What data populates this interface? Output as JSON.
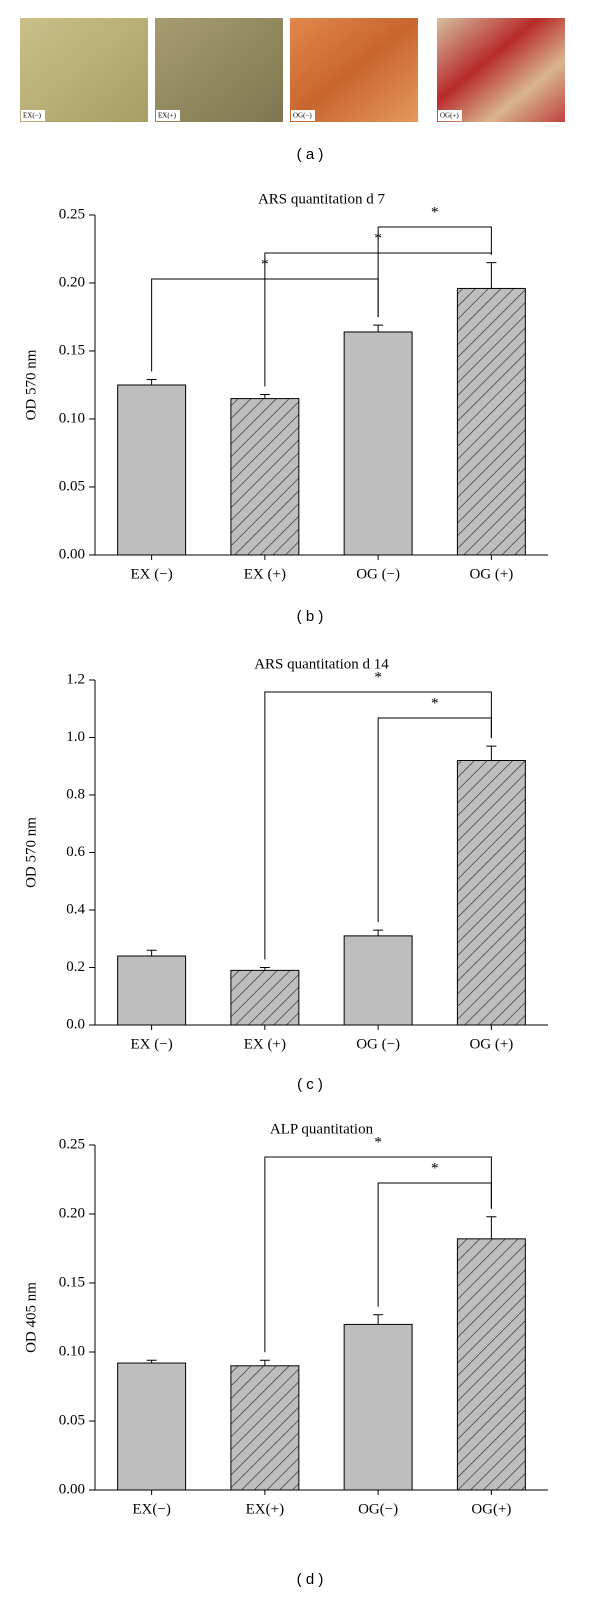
{
  "images": {
    "labels": [
      "EX(−)",
      "EX(+)",
      "OG(−)",
      "OG(+)"
    ],
    "caption": "( a )"
  },
  "chart_data": [
    {
      "type": "bar",
      "title": "ARS quantitation d 7",
      "ylabel": "OD 570 nm",
      "caption": "( b )",
      "categories": [
        "EX (−)",
        "EX (+)",
        "OG (−)",
        "OG (+)"
      ],
      "values": [
        0.125,
        0.115,
        0.164,
        0.196
      ],
      "errors": [
        0.004,
        0.003,
        0.005,
        0.019
      ],
      "hatched": [
        false,
        true,
        false,
        true
      ],
      "color": "#bebebe",
      "ylim": [
        0,
        0.25
      ],
      "yticks": [
        {
          "value": 0,
          "label": "0.00"
        },
        0.05,
        {
          "value": 0.1,
          "label": "0.10"
        },
        0.15,
        {
          "value": 0.2,
          "label": "0.20"
        },
        0.25
      ],
      "annotations": [
        {
          "text": "*",
          "from": 0,
          "to": 2
        },
        {
          "text": "*",
          "from": 1,
          "to": 3
        },
        {
          "text": "*",
          "from": 2,
          "to": 3
        }
      ]
    },
    {
      "type": "bar",
      "title": "ARS quantitation d 14",
      "ylabel": "OD 570 nm",
      "caption": "( c )",
      "categories": [
        "EX (−)",
        "EX (+)",
        "OG (−)",
        "OG (+)"
      ],
      "values": [
        0.24,
        0.19,
        0.31,
        0.92
      ],
      "errors": [
        0.02,
        0.01,
        0.02,
        0.05
      ],
      "hatched": [
        false,
        true,
        false,
        true
      ],
      "color": "#bebebe",
      "ylim": [
        0,
        1.2
      ],
      "yticks": [
        {
          "value": 0,
          "label": "0.0"
        },
        0.2,
        0.4,
        0.6,
        0.8,
        {
          "value": 1,
          "label": "1.0"
        },
        1.2
      ],
      "annotations": [
        {
          "text": "*",
          "from": 2,
          "to": 3
        },
        {
          "text": "*",
          "from": 1,
          "to": 3
        }
      ]
    },
    {
      "type": "bar",
      "title": "ALP quantitation",
      "ylabel": "OD 405 nm",
      "caption": "( d )",
      "categories": [
        "EX(−)",
        "EX(+)",
        "OG(−)",
        "OG(+)"
      ],
      "values": [
        0.092,
        0.09,
        0.12,
        0.182
      ],
      "errors": [
        0.002,
        0.004,
        0.007,
        0.016
      ],
      "hatched": [
        false,
        true,
        false,
        true
      ],
      "color": "#bebebe",
      "ylim": [
        0,
        0.25
      ],
      "yticks": [
        {
          "value": 0,
          "label": "0.00"
        },
        0.05,
        {
          "value": 0.1,
          "label": "0.10"
        },
        0.15,
        {
          "value": 0.2,
          "label": "0.20"
        },
        0.25
      ],
      "annotations": [
        {
          "text": "*",
          "from": 2,
          "to": 3
        },
        {
          "text": "*",
          "from": 1,
          "to": 3
        }
      ]
    }
  ]
}
